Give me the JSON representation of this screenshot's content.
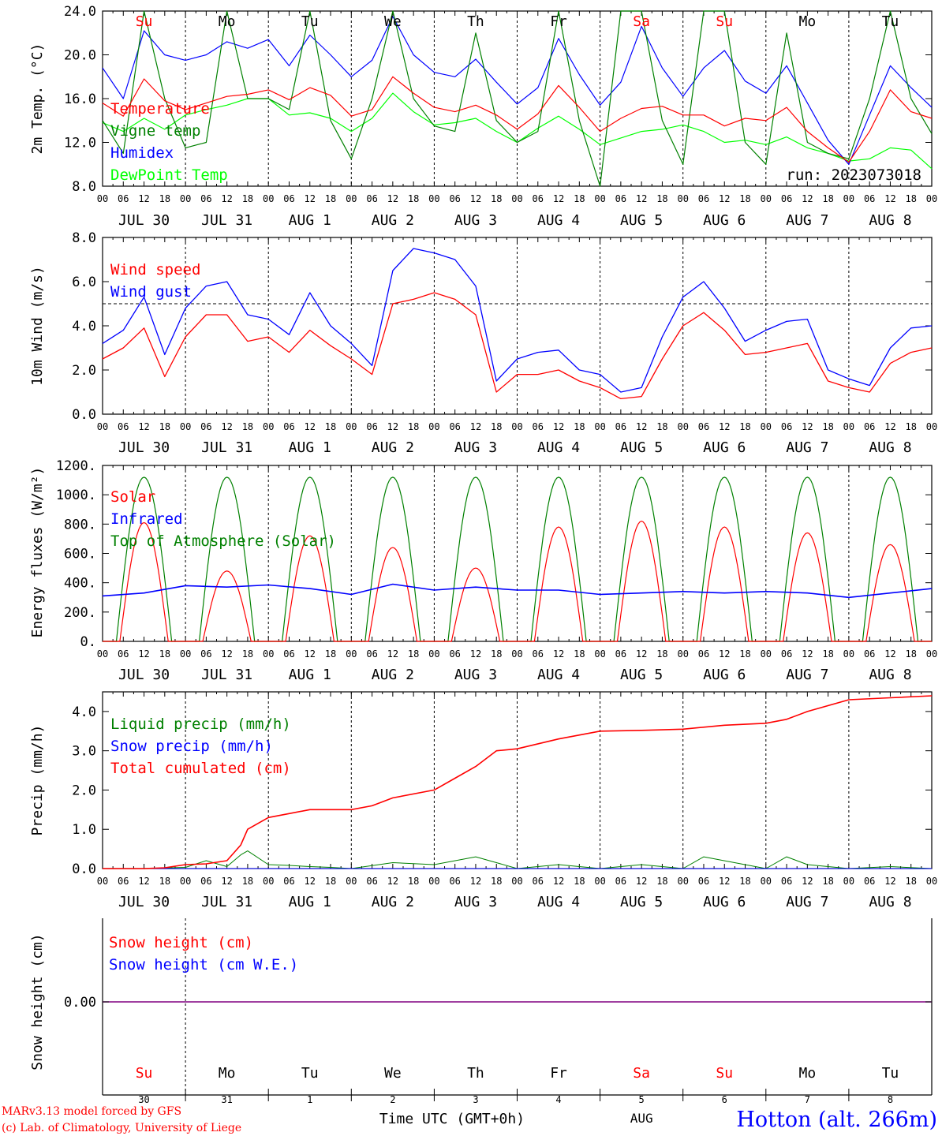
{
  "chart_data": [
    {
      "type": "line",
      "ylabel": "2m Temp. (°C)",
      "ylim": [
        8.0,
        24.0
      ],
      "yticks": [
        "8.0",
        "12.0",
        "16.0",
        "20.0",
        "24.0"
      ],
      "run_label": "run: 2023073018",
      "series": [
        {
          "name": "Temperature",
          "color": "#ff0000",
          "x": [
            0,
            6,
            12,
            18,
            24,
            30,
            36,
            42,
            48,
            54,
            60,
            66,
            72,
            78,
            84,
            90,
            96,
            102,
            108,
            114,
            120,
            126,
            132,
            138,
            144,
            150,
            156,
            162,
            168,
            174,
            180,
            186,
            192,
            198,
            204,
            210,
            216,
            222,
            228,
            234,
            240
          ],
          "y": [
            15.6,
            14.4,
            17.8,
            15.8,
            15.0,
            15.6,
            16.2,
            16.4,
            16.8,
            15.9,
            17.0,
            16.3,
            14.4,
            15.0,
            18.0,
            16.5,
            15.2,
            14.8,
            15.4,
            14.5,
            13.2,
            14.6,
            17.2,
            15.2,
            13.0,
            14.2,
            15.1,
            15.3,
            14.5,
            14.5,
            13.5,
            14.2,
            14.0,
            15.2,
            13.0,
            11.5,
            10.2,
            13.0,
            16.8,
            14.8,
            14.2
          ]
        },
        {
          "name": "Vigne temp",
          "color": "#008000",
          "x": [
            0,
            6,
            12,
            18,
            24,
            30,
            36,
            42,
            48,
            54,
            60,
            66,
            72,
            78,
            84,
            90,
            96,
            102,
            108,
            114,
            120,
            126,
            132,
            138,
            144,
            150,
            156,
            162,
            168,
            174,
            180,
            186,
            192,
            198,
            204,
            210,
            216,
            222,
            228,
            234,
            240
          ],
          "y": [
            14.0,
            11.0,
            24.0,
            16.0,
            11.5,
            12.0,
            24.0,
            16.0,
            16.0,
            15.0,
            24.0,
            14.0,
            10.5,
            16.0,
            24.0,
            16.0,
            13.5,
            13.0,
            22.0,
            14.0,
            12.0,
            13.0,
            24.0,
            14.0,
            8.0,
            24.0,
            24.0,
            14.0,
            10.0,
            24.0,
            24.0,
            12.0,
            10.0,
            22.0,
            12.0,
            11.0,
            10.5,
            16.0,
            24.0,
            16.0,
            12.8
          ]
        },
        {
          "name": "Humidex",
          "color": "#0000ff",
          "x": [
            0,
            6,
            12,
            18,
            24,
            30,
            36,
            42,
            48,
            54,
            60,
            66,
            72,
            78,
            84,
            90,
            96,
            102,
            108,
            114,
            120,
            126,
            132,
            138,
            144,
            150,
            156,
            162,
            168,
            174,
            180,
            186,
            192,
            198,
            204,
            210,
            216,
            222,
            228,
            234,
            240
          ],
          "y": [
            18.8,
            16.0,
            22.2,
            20.0,
            19.5,
            20.0,
            21.2,
            20.6,
            21.4,
            19.0,
            21.8,
            20.0,
            18.0,
            19.5,
            23.5,
            20.0,
            18.4,
            18.0,
            19.6,
            17.5,
            15.5,
            17.0,
            21.5,
            18.2,
            15.4,
            17.5,
            22.6,
            18.8,
            16.2,
            18.8,
            20.4,
            17.6,
            16.5,
            19.0,
            15.6,
            12.2,
            10.0,
            14.5,
            19.0,
            17.0,
            15.2
          ]
        },
        {
          "name": "DewPoint Temp",
          "color": "#00ff00",
          "x": [
            0,
            6,
            12,
            18,
            24,
            30,
            36,
            42,
            48,
            54,
            60,
            66,
            72,
            78,
            84,
            90,
            96,
            102,
            108,
            114,
            120,
            126,
            132,
            138,
            144,
            150,
            156,
            162,
            168,
            174,
            180,
            186,
            192,
            198,
            204,
            210,
            216,
            222,
            228,
            234,
            240
          ],
          "y": [
            13.8,
            13.0,
            14.2,
            13.2,
            14.5,
            15.0,
            15.4,
            16.0,
            16.0,
            14.5,
            14.7,
            14.2,
            13.0,
            14.2,
            16.5,
            14.8,
            13.6,
            13.8,
            14.2,
            13.0,
            12.0,
            13.3,
            14.4,
            13.2,
            11.8,
            12.4,
            13.0,
            13.2,
            13.6,
            13.0,
            12.0,
            12.2,
            11.8,
            12.5,
            11.5,
            11.0,
            10.3,
            10.5,
            11.5,
            11.3,
            9.6
          ]
        }
      ]
    },
    {
      "type": "line",
      "ylabel": "10m Wind (m/s)",
      "ylim": [
        0.0,
        8.0
      ],
      "yticks": [
        "0.0",
        "2.0",
        "4.0",
        "6.0",
        "8.0"
      ],
      "reference_line": 5.0,
      "series": [
        {
          "name": "Wind speed",
          "color": "#ff0000",
          "x": [
            0,
            6,
            12,
            18,
            24,
            30,
            36,
            42,
            48,
            54,
            60,
            66,
            72,
            78,
            84,
            90,
            96,
            102,
            108,
            114,
            120,
            126,
            132,
            138,
            144,
            150,
            156,
            162,
            168,
            174,
            180,
            186,
            192,
            198,
            204,
            210,
            216,
            222,
            228,
            234,
            240
          ],
          "y": [
            2.5,
            3.0,
            3.9,
            1.7,
            3.5,
            4.5,
            4.5,
            3.3,
            3.5,
            2.8,
            3.8,
            3.1,
            2.5,
            1.8,
            5.0,
            5.2,
            5.5,
            5.2,
            4.5,
            1.0,
            1.8,
            1.8,
            2.0,
            1.5,
            1.2,
            0.7,
            0.8,
            2.5,
            4.0,
            4.6,
            3.8,
            2.7,
            2.8,
            3.0,
            3.2,
            1.5,
            1.2,
            1.0,
            2.3,
            2.8,
            3.0
          ]
        },
        {
          "name": "Wind gust",
          "color": "#0000ff",
          "x": [
            0,
            6,
            12,
            18,
            24,
            30,
            36,
            42,
            48,
            54,
            60,
            66,
            72,
            78,
            84,
            90,
            96,
            102,
            108,
            114,
            120,
            126,
            132,
            138,
            144,
            150,
            156,
            162,
            168,
            174,
            180,
            186,
            192,
            198,
            204,
            210,
            216,
            222,
            228,
            234,
            240
          ],
          "y": [
            3.2,
            3.8,
            5.3,
            2.7,
            4.8,
            5.8,
            6.0,
            4.5,
            4.3,
            3.6,
            5.5,
            4.0,
            3.2,
            2.2,
            6.5,
            7.5,
            7.3,
            7.0,
            5.8,
            1.5,
            2.5,
            2.8,
            2.9,
            2.0,
            1.8,
            1.0,
            1.2,
            3.5,
            5.3,
            6.0,
            4.8,
            3.3,
            3.8,
            4.2,
            4.3,
            2.0,
            1.6,
            1.3,
            3.0,
            3.9,
            4.0
          ]
        }
      ]
    },
    {
      "type": "line",
      "ylabel": "Energy fluxes (W/m²)",
      "ylim": [
        0,
        1200
      ],
      "yticks": [
        "0.",
        "200.",
        "400.",
        "600.",
        "800.",
        "1000.",
        "1200."
      ],
      "series": [
        {
          "name": "Solar",
          "color": "#ff0000",
          "daily_peak": [
            810,
            480,
            720,
            640,
            500,
            780,
            820,
            780,
            740,
            660
          ]
        },
        {
          "name": "Infrared",
          "color": "#0000ff",
          "x": [
            0,
            12,
            24,
            36,
            48,
            60,
            72,
            84,
            96,
            108,
            120,
            132,
            144,
            156,
            168,
            180,
            192,
            204,
            216,
            228,
            240
          ],
          "y": [
            310,
            330,
            380,
            370,
            385,
            360,
            320,
            390,
            350,
            370,
            350,
            350,
            320,
            330,
            340,
            330,
            340,
            330,
            300,
            330,
            360
          ]
        },
        {
          "name": "Top of Atmosphere (Solar)",
          "color": "#008000",
          "daily_peak": 1120
        }
      ]
    },
    {
      "type": "line",
      "ylabel": "Precip (mm/h)",
      "ylim": [
        0.0,
        4.5
      ],
      "yticks": [
        "0.0",
        "1.0",
        "2.0",
        "3.0",
        "4.0"
      ],
      "series": [
        {
          "name": "Liquid precip (mm/h)",
          "color": "#008000",
          "x": [
            0,
            12,
            24,
            30,
            36,
            40,
            42,
            48,
            54,
            60,
            66,
            72,
            84,
            96,
            108,
            114,
            120,
            132,
            144,
            156,
            168,
            174,
            192,
            198,
            204,
            216,
            228,
            240
          ],
          "y": [
            0,
            0,
            0.03,
            0.2,
            0.05,
            0.35,
            0.45,
            0.1,
            0.08,
            0.05,
            0.03,
            0,
            0.15,
            0.1,
            0.3,
            0.15,
            0,
            0.1,
            0,
            0.1,
            0,
            0.3,
            0,
            0.3,
            0.1,
            0,
            0.05,
            0
          ]
        },
        {
          "name": "Snow precip (mm/h)",
          "color": "#0000ff",
          "x": [
            0,
            240
          ],
          "y": [
            0,
            0
          ]
        },
        {
          "name": "Total cumulated (cm)",
          "color": "#ff0000",
          "x": [
            0,
            12,
            18,
            24,
            30,
            36,
            40,
            42,
            48,
            54,
            60,
            72,
            78,
            84,
            96,
            102,
            108,
            114,
            120,
            132,
            144,
            156,
            168,
            180,
            192,
            198,
            204,
            216,
            228,
            240
          ],
          "y": [
            0,
            0,
            0.02,
            0.1,
            0.12,
            0.2,
            0.6,
            1.0,
            1.3,
            1.4,
            1.5,
            1.5,
            1.6,
            1.8,
            2.0,
            2.3,
            2.6,
            3.0,
            3.05,
            3.3,
            3.5,
            3.52,
            3.55,
            3.65,
            3.7,
            3.8,
            4.0,
            4.3,
            4.35,
            4.4
          ]
        }
      ]
    },
    {
      "type": "line",
      "ylabel": "Snow height (cm)",
      "yticks": [
        "0.00"
      ],
      "series": [
        {
          "name": "Snow height (cm)",
          "color": "#ff0000",
          "x": [
            0,
            240
          ],
          "y": [
            0,
            0
          ]
        },
        {
          "name": "Snow height (cm W.E.)",
          "color": "#0000ff",
          "x": [
            0,
            240
          ],
          "y": [
            0,
            0
          ]
        }
      ]
    }
  ],
  "axis": {
    "hour_ticks": [
      "00",
      "06",
      "12",
      "18"
    ],
    "end_tick": "00",
    "date_labels": [
      "JUL 30",
      "JUL 31",
      "AUG  1",
      "AUG  2",
      "AUG  3",
      "AUG  4",
      "AUG  5",
      "AUG  6",
      "AUG  7",
      "AUG  8"
    ],
    "day_names": [
      "Su",
      "Mo",
      "Tu",
      "We",
      "Th",
      "Fr",
      "Sa",
      "Su",
      "Mo",
      "Tu"
    ],
    "day_colors": [
      "#ff0000",
      "#000000",
      "#000000",
      "#000000",
      "#000000",
      "#000000",
      "#ff0000",
      "#ff0000",
      "#000000",
      "#000000"
    ],
    "day_numbers": [
      "30",
      "31",
      "1",
      "2",
      "3",
      "4",
      "5",
      "6",
      "7",
      "8"
    ],
    "month_label": "AUG",
    "xlabel": "Time UTC (GMT+0h)"
  },
  "footer": {
    "credit_line1": "MARv3.13 model forced by GFS",
    "credit_line2": "(c) Lab. of Climatology, University of Liege",
    "station": "Hotton (alt. 266m)"
  },
  "colors": {
    "red": "#ff0000",
    "green": "#008000",
    "blue": "#0000ff",
    "lime": "#00ff00",
    "snow_line": "#800080"
  }
}
